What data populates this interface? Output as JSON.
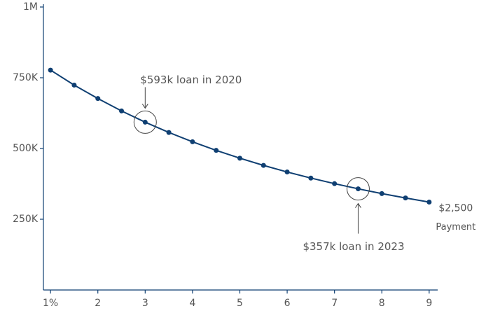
{
  "chart_data": {
    "type": "line",
    "x": [
      1,
      1.5,
      2,
      2.5,
      3,
      3.5,
      4,
      4.5,
      5,
      5.5,
      6,
      6.5,
      7,
      7.5,
      8,
      8.5,
      9
    ],
    "series": [
      {
        "name": [
          "$2,500",
          "Payment"
        ],
        "color": "#0f3f72",
        "values": [
          777000,
          724000,
          676700,
          632700,
          593000,
          556700,
          523700,
          493400,
          465700,
          440300,
          417000,
          395500,
          375800,
          357500,
          340700,
          325100,
          310700
        ]
      }
    ],
    "xlim": [
      0.85,
      9.18
    ],
    "ylim": [
      0,
      1000000
    ],
    "xticks": [
      {
        "value": 1,
        "label": "1%"
      },
      2,
      3,
      4,
      5,
      6,
      7,
      8,
      9
    ],
    "yticks": [
      {
        "value": 250000,
        "label": "250K"
      },
      {
        "value": 500000,
        "label": "500K"
      },
      {
        "value": 750000,
        "label": "750K"
      },
      {
        "value": 1000000,
        "label": "1M"
      }
    ],
    "annotations": [
      {
        "text": "$593k loan in 2020",
        "x": 3
      },
      {
        "text": "$357k loan in 2023",
        "x": 7.5
      }
    ]
  }
}
